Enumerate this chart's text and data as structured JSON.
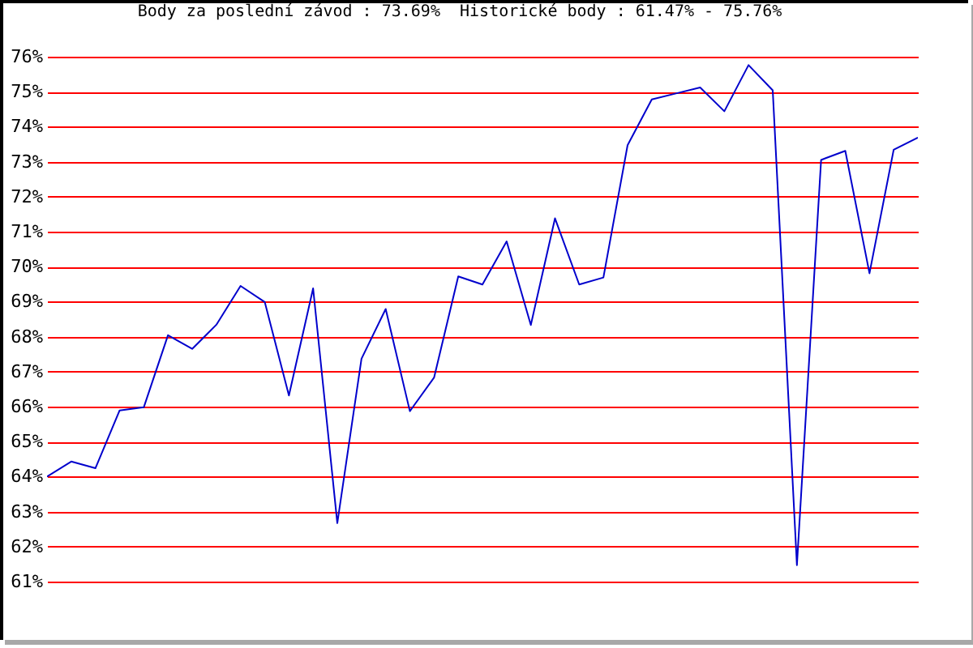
{
  "chart_data": {
    "type": "line",
    "title": "Body za poslední závod : 73.69%  Historické body : 61.47% - 75.76%",
    "categories": [
      null,
      null,
      null,
      null,
      null,
      null,
      null,
      null,
      null,
      null,
      null,
      null,
      null,
      null,
      null,
      null,
      null,
      null,
      null,
      null,
      null,
      null,
      null,
      null,
      null,
      null,
      null,
      null,
      null,
      null,
      null,
      null,
      null,
      null,
      null,
      null,
      null
    ],
    "values": [
      64.0,
      64.43,
      64.24,
      65.89,
      65.98,
      68.04,
      67.65,
      68.34,
      69.45,
      68.99,
      66.32,
      69.38,
      62.67,
      67.37,
      68.79,
      65.87,
      66.83,
      69.72,
      69.49,
      70.72,
      68.33,
      71.38,
      69.49,
      69.69,
      73.47,
      74.78,
      74.95,
      75.12,
      74.44,
      75.76,
      75.04,
      61.47,
      73.05,
      73.31,
      69.81,
      73.34,
      73.69
    ],
    "color": "#0000cc",
    "ylim": [
      61,
      76
    ],
    "yticks": [
      {
        "value": 61,
        "label": "61%"
      },
      {
        "value": 62,
        "label": "62%"
      },
      {
        "value": 63,
        "label": "63%"
      },
      {
        "value": 64,
        "label": "64%"
      },
      {
        "value": 65,
        "label": "65%"
      },
      {
        "value": 66,
        "label": "66%"
      },
      {
        "value": 67,
        "label": "67%"
      },
      {
        "value": 68,
        "label": "68%"
      },
      {
        "value": 69,
        "label": "69%"
      },
      {
        "value": 70,
        "label": "70%"
      },
      {
        "value": 71,
        "label": "71%"
      },
      {
        "value": 72,
        "label": "72%"
      },
      {
        "value": 73,
        "label": "73%"
      },
      {
        "value": 74,
        "label": "74%"
      },
      {
        "value": 75,
        "label": "75%"
      },
      {
        "value": 76,
        "label": "76%"
      }
    ],
    "grid": "y"
  }
}
